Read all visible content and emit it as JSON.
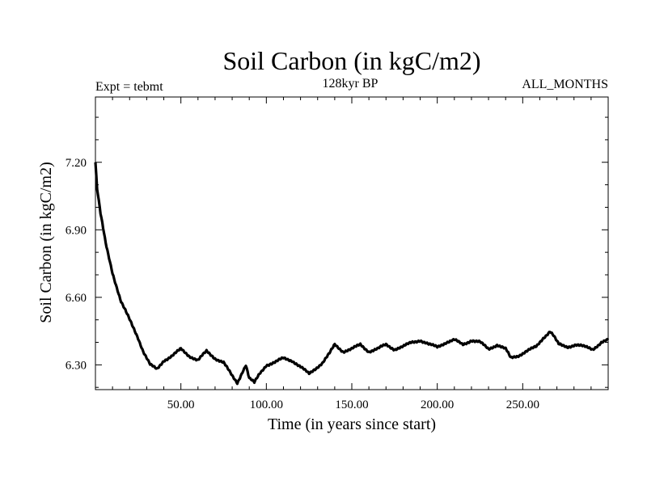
{
  "chart_data": {
    "type": "line",
    "title": "Soil Carbon (in kgC/m2)",
    "subtitle_left": "Expt = tebmt",
    "subtitle_center": "128kyr BP",
    "subtitle_right": "ALL_MONTHS",
    "xlabel": "Time (in years since start)",
    "ylabel": "Soil Carbon (in kgC/m2)",
    "xlim": [
      0,
      300
    ],
    "ylim": [
      6.19,
      7.49
    ],
    "x_ticks": [
      50,
      100,
      150,
      200,
      250
    ],
    "x_tick_labels": [
      "50.00",
      "100.00",
      "150.00",
      "200.00",
      "250.00"
    ],
    "y_ticks": [
      6.3,
      6.6,
      6.9,
      7.2
    ],
    "y_tick_labels": [
      "6.30",
      "6.60",
      "6.90",
      "7.20"
    ],
    "series": [
      {
        "name": "Soil Carbon",
        "x": [
          0,
          1,
          3,
          6,
          10,
          15,
          20,
          25,
          28,
          32,
          36,
          40,
          45,
          50,
          55,
          60,
          65,
          70,
          75,
          80,
          83,
          86,
          88,
          90,
          93,
          96,
          100,
          105,
          110,
          115,
          120,
          125,
          128,
          133,
          137,
          140,
          145,
          150,
          155,
          160,
          165,
          170,
          175,
          180,
          185,
          190,
          195,
          200,
          205,
          210,
          215,
          220,
          225,
          230,
          235,
          240,
          243,
          247,
          252,
          258,
          262,
          266,
          268,
          271,
          276,
          281,
          286,
          291,
          296,
          300
        ],
        "y": [
          7.2,
          7.08,
          6.97,
          6.84,
          6.71,
          6.58,
          6.5,
          6.42,
          6.36,
          6.3,
          6.28,
          6.32,
          6.34,
          6.37,
          6.34,
          6.32,
          6.36,
          6.33,
          6.31,
          6.25,
          6.22,
          6.27,
          6.3,
          6.24,
          6.22,
          6.26,
          6.3,
          6.31,
          6.33,
          6.32,
          6.29,
          6.26,
          6.28,
          6.31,
          6.35,
          6.39,
          6.36,
          6.37,
          6.39,
          6.36,
          6.37,
          6.39,
          6.37,
          6.38,
          6.4,
          6.41,
          6.39,
          6.38,
          6.4,
          6.41,
          6.39,
          6.41,
          6.4,
          6.37,
          6.39,
          6.37,
          6.33,
          6.34,
          6.36,
          6.38,
          6.42,
          6.45,
          6.43,
          6.39,
          6.38,
          6.39,
          6.38,
          6.37,
          6.4,
          6.41
        ]
      }
    ]
  }
}
